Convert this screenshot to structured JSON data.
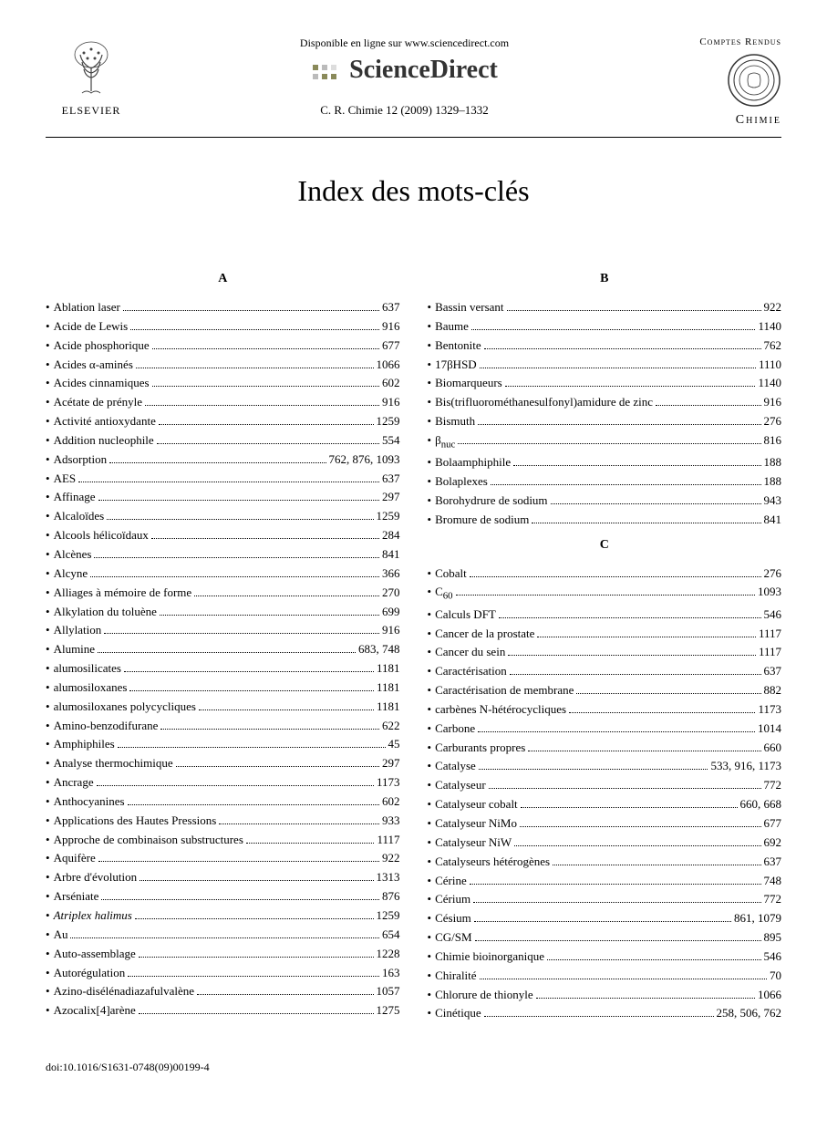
{
  "header": {
    "online_text": "Disponible en ligne sur www.sciencedirect.com",
    "brand": "ScienceDirect",
    "citation": "C. R. Chimie 12 (2009) 1329–1332",
    "publisher": "ELSEVIER",
    "journal_series": "Comptes Rendus",
    "journal_name": "Chimie"
  },
  "title": "Index des mots-clés",
  "sections": {
    "A": {
      "letter": "A",
      "entries": [
        {
          "term": "Ablation laser",
          "page": "637"
        },
        {
          "term": "Acide de Lewis",
          "page": "916"
        },
        {
          "term": "Acide phosphorique",
          "page": "677"
        },
        {
          "term": "Acides α-aminés",
          "page": "1066"
        },
        {
          "term": "Acides cinnamiques",
          "page": "602"
        },
        {
          "term": "Acétate de prényle",
          "page": "916"
        },
        {
          "term": "Activité antioxydante",
          "page": "1259"
        },
        {
          "term": "Addition nucleophile",
          "page": "554"
        },
        {
          "term": "Adsorption",
          "page": "762, 876, 1093"
        },
        {
          "term": "AES",
          "page": "637"
        },
        {
          "term": "Affinage",
          "page": "297"
        },
        {
          "term": "Alcaloïdes",
          "page": "1259"
        },
        {
          "term": "Alcools hélicoïdaux",
          "page": "284"
        },
        {
          "term": "Alcènes",
          "page": "841"
        },
        {
          "term": "Alcyne",
          "page": "366"
        },
        {
          "term": "Alliages à mémoire de forme",
          "page": "270"
        },
        {
          "term": "Alkylation du toluène",
          "page": "699"
        },
        {
          "term": "Allylation",
          "page": "916"
        },
        {
          "term": "Alumine",
          "page": "683, 748"
        },
        {
          "term": "alumosilicates",
          "page": "1181"
        },
        {
          "term": "alumosiloxanes",
          "page": "1181"
        },
        {
          "term": "alumosiloxanes polycycliques",
          "page": "1181"
        },
        {
          "term": "Amino-benzodifurane",
          "page": "622"
        },
        {
          "term": "Amphiphiles",
          "page": "45"
        },
        {
          "term": "Analyse thermochimique",
          "page": "297"
        },
        {
          "term": "Ancrage",
          "page": "1173"
        },
        {
          "term": "Anthocyanines",
          "page": "602"
        },
        {
          "term": "Applications des Hautes Pressions",
          "page": "933"
        },
        {
          "term": "Approche de combinaison substructures",
          "page": "1117"
        },
        {
          "term": "Aquifère",
          "page": "922"
        },
        {
          "term": "Arbre d'évolution",
          "page": "1313"
        },
        {
          "term": "Arséniate",
          "page": "876"
        },
        {
          "term": "Atriplex halimus",
          "page": "1259",
          "italic": true
        },
        {
          "term": "Au",
          "page": "654"
        },
        {
          "term": "Auto-assemblage",
          "page": "1228"
        },
        {
          "term": "Autorégulation",
          "page": "163"
        },
        {
          "term": "Azino-disélénadiazafulvalène",
          "page": "1057"
        },
        {
          "term": "Azocalix[4]arène",
          "page": "1275"
        }
      ]
    },
    "B": {
      "letter": "B",
      "entries": [
        {
          "term": "Bassin versant",
          "page": "922"
        },
        {
          "term": "Baume",
          "page": "1140"
        },
        {
          "term": "Bentonite",
          "page": "762"
        },
        {
          "term": "17βHSD",
          "page": "1110"
        },
        {
          "term": "Biomarqueurs",
          "page": "1140"
        },
        {
          "term": "Bis(trifluorométhanesulfonyl)amidure de zinc",
          "page": "916"
        },
        {
          "term": "Bismuth",
          "page": "276"
        },
        {
          "term": "βnuc",
          "page": "816",
          "sub": true
        },
        {
          "term": "Bolaamphiphile",
          "page": "188"
        },
        {
          "term": "Bolaplexes",
          "page": "188"
        },
        {
          "term": "Borohydrure de sodium",
          "page": "943"
        },
        {
          "term": "Bromure de sodium",
          "page": "841"
        }
      ]
    },
    "C": {
      "letter": "C",
      "entries": [
        {
          "term": "Cobalt",
          "page": "276"
        },
        {
          "term": "C60",
          "page": "1093",
          "sub60": true
        },
        {
          "term": "Calculs DFT",
          "page": "546"
        },
        {
          "term": "Cancer de la prostate",
          "page": "1117"
        },
        {
          "term": "Cancer du sein",
          "page": "1117"
        },
        {
          "term": "Caractérisation",
          "page": "637"
        },
        {
          "term": "Caractérisation de membrane",
          "page": "882"
        },
        {
          "term": "carbènes N-hétérocycliques",
          "page": "1173"
        },
        {
          "term": "Carbone",
          "page": "1014"
        },
        {
          "term": "Carburants propres",
          "page": "660"
        },
        {
          "term": "Catalyse",
          "page": "533, 916, 1173"
        },
        {
          "term": "Catalyseur",
          "page": "772"
        },
        {
          "term": "Catalyseur cobalt",
          "page": "660, 668"
        },
        {
          "term": "Catalyseur NiMo",
          "page": "677"
        },
        {
          "term": "Catalyseur NiW",
          "page": "692"
        },
        {
          "term": "Catalyseurs hétérogènes",
          "page": "637"
        },
        {
          "term": "Cérine",
          "page": "748"
        },
        {
          "term": "Cérium",
          "page": "772"
        },
        {
          "term": "Césium",
          "page": "861, 1079"
        },
        {
          "term": "CG/SM",
          "page": "895"
        },
        {
          "term": "Chimie bioinorganique",
          "page": "546"
        },
        {
          "term": "Chiralité",
          "page": "70"
        },
        {
          "term": "Chlorure de thionyle",
          "page": "1066"
        },
        {
          "term": "Cinétique",
          "page": "258, 506, 762"
        }
      ]
    }
  },
  "doi": "doi:10.1016/S1631-0748(09)00199-4"
}
